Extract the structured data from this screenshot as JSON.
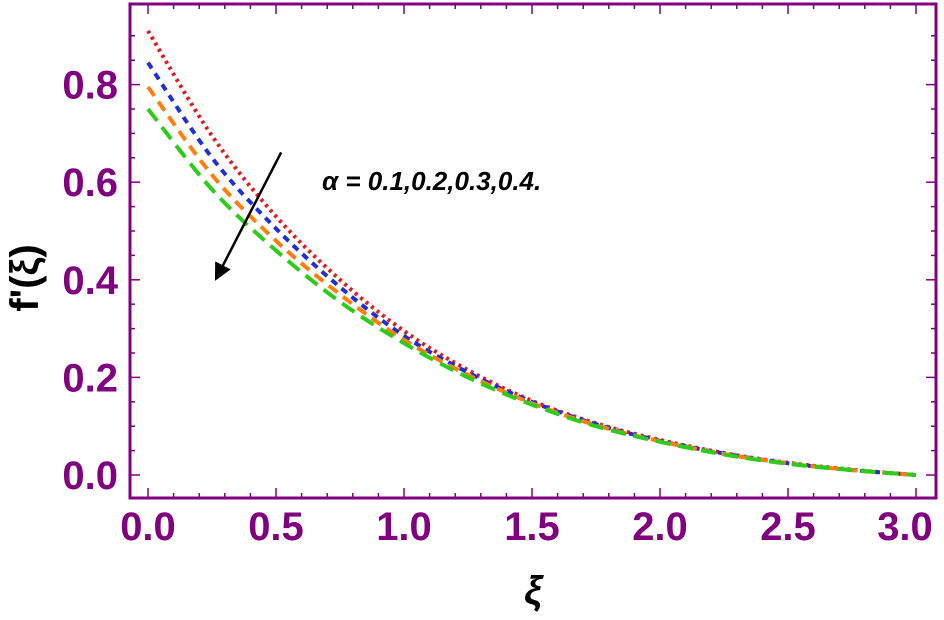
{
  "chart_data": {
    "type": "line",
    "title": "",
    "xlabel": "ξ",
    "ylabel": "f'(ξ)",
    "xlim": [
      0,
      3
    ],
    "ylim": [
      0,
      0.94
    ],
    "grid": false,
    "legend": "none",
    "x_ticks": [
      "0.0",
      "0.5",
      "1.0",
      "1.5",
      "2.0",
      "2.5",
      "3.0"
    ],
    "y_ticks": [
      "0.0",
      "0.2",
      "0.4",
      "0.6",
      "0.8"
    ],
    "x": [
      0,
      0.25,
      0.5,
      0.75,
      1.0,
      1.25,
      1.5,
      1.75,
      2.0,
      2.25,
      2.5,
      2.75,
      3.0
    ],
    "series": [
      {
        "color": "#e41a1c",
        "dash": "dotted",
        "values": [
          0.91,
          0.695,
          0.53,
          0.4,
          0.295,
          0.215,
          0.152,
          0.106,
          0.072,
          0.045,
          0.025,
          0.011,
          0.0
        ]
      },
      {
        "color": "#1f2fd6",
        "dash": "short-dash",
        "values": [
          0.845,
          0.65,
          0.505,
          0.385,
          0.285,
          0.21,
          0.15,
          0.104,
          0.07,
          0.044,
          0.024,
          0.01,
          0.0
        ]
      },
      {
        "color": "#ff7f0e",
        "dash": "dash",
        "values": [
          0.795,
          0.615,
          0.48,
          0.37,
          0.277,
          0.205,
          0.147,
          0.102,
          0.069,
          0.043,
          0.024,
          0.01,
          0.0
        ]
      },
      {
        "color": "#2ecc1a",
        "dash": "long-dash",
        "values": [
          0.75,
          0.585,
          0.46,
          0.355,
          0.27,
          0.2,
          0.144,
          0.1,
          0.068,
          0.042,
          0.023,
          0.01,
          0.0
        ]
      }
    ],
    "annotation": {
      "text": "α = 0.1,0.2,0.3,0.4.",
      "arrow_from": [
        0.52,
        0.62
      ],
      "arrow_to": [
        0.26,
        0.4
      ]
    },
    "colors": {
      "frame": "#800080",
      "tick_label": "#800080",
      "annotation": "#000000"
    }
  }
}
